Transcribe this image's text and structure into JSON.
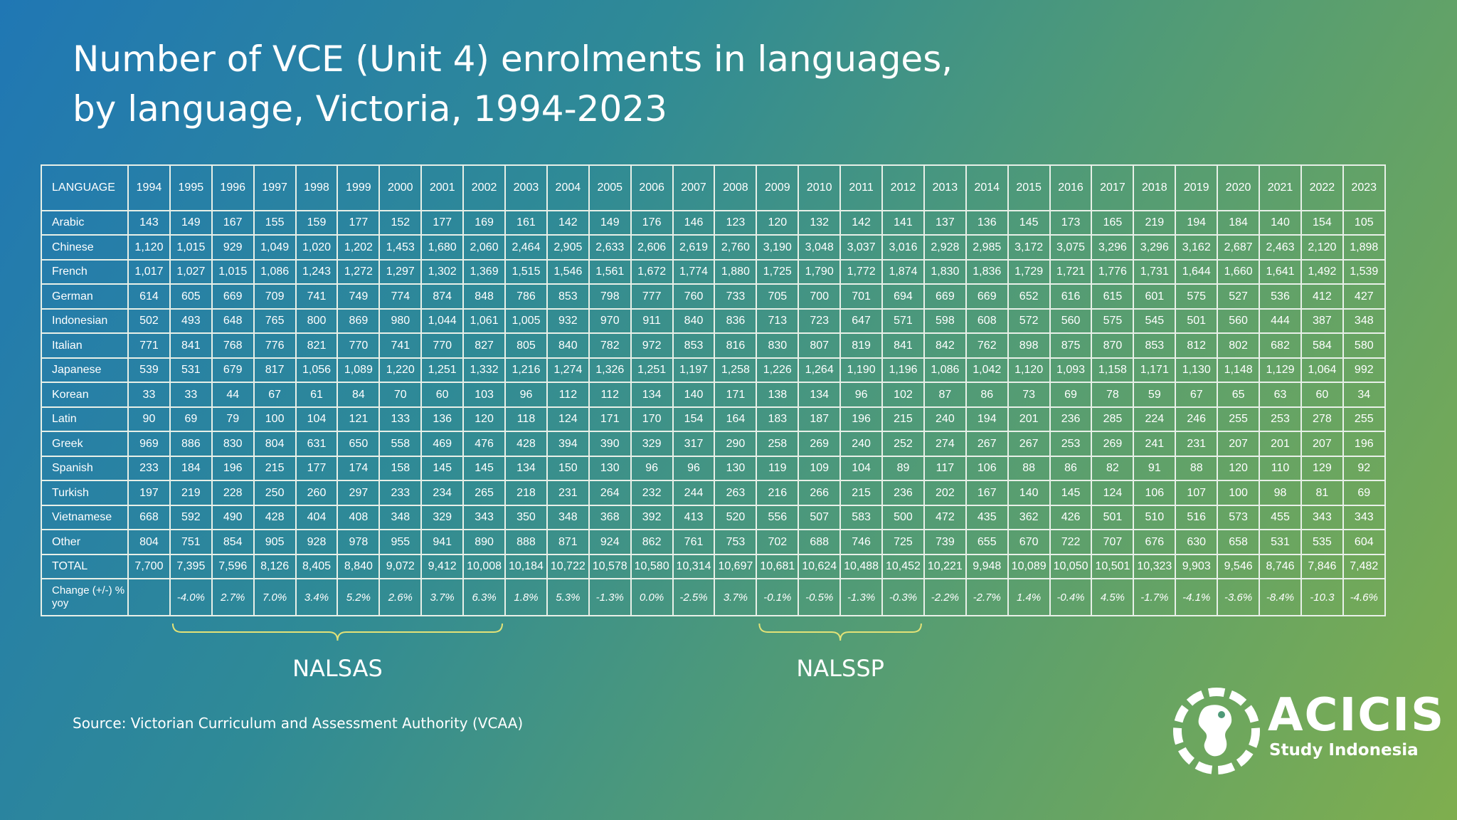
{
  "title_line1": "Number of VCE (Unit 4) enrolments in languages,",
  "title_line2": "by language, Victoria, 1994-2023",
  "source": "Source: Victorian Curriculum and Assessment Authority (VCAA)",
  "logo": {
    "name": "ACICIS",
    "sub": "Study Indonesia",
    "icon": "acicis-emblem-icon"
  },
  "annotations": [
    {
      "label": "NALSAS",
      "from_year": "1995",
      "to_year": "2002",
      "color": "#e3e277"
    },
    {
      "label": "NALSSP",
      "from_year": "2009",
      "to_year": "2012",
      "color": "#e3e277"
    }
  ],
  "chart_data": {
    "type": "table",
    "header_label": "LANGUAGE",
    "years": [
      "1994",
      "1995",
      "1996",
      "1997",
      "1998",
      "1999",
      "2000",
      "2001",
      "2002",
      "2003",
      "2004",
      "2005",
      "2006",
      "2007",
      "2008",
      "2009",
      "2010",
      "2011",
      "2012",
      "2013",
      "2014",
      "2015",
      "2016",
      "2017",
      "2018",
      "2019",
      "2020",
      "2021",
      "2022",
      "2023"
    ],
    "rows": [
      {
        "language": "Arabic",
        "values": [
          "143",
          "149",
          "167",
          "155",
          "159",
          "177",
          "152",
          "177",
          "169",
          "161",
          "142",
          "149",
          "176",
          "146",
          "123",
          "120",
          "132",
          "142",
          "141",
          "137",
          "136",
          "145",
          "173",
          "165",
          "219",
          "194",
          "184",
          "140",
          "154",
          "105"
        ]
      },
      {
        "language": "Chinese",
        "values": [
          "1,120",
          "1,015",
          "929",
          "1,049",
          "1,020",
          "1,202",
          "1,453",
          "1,680",
          "2,060",
          "2,464",
          "2,905",
          "2,633",
          "2,606",
          "2,619",
          "2,760",
          "3,190",
          "3,048",
          "3,037",
          "3,016",
          "2,928",
          "2,985",
          "3,172",
          "3,075",
          "3,296",
          "3,296",
          "3,162",
          "2,687",
          "2,463",
          "2,120",
          "1,898"
        ]
      },
      {
        "language": "French",
        "values": [
          "1,017",
          "1,027",
          "1,015",
          "1,086",
          "1,243",
          "1,272",
          "1,297",
          "1,302",
          "1,369",
          "1,515",
          "1,546",
          "1,561",
          "1,672",
          "1,774",
          "1,880",
          "1,725",
          "1,790",
          "1,772",
          "1,874",
          "1,830",
          "1,836",
          "1,729",
          "1,721",
          "1,776",
          "1,731",
          "1,644",
          "1,660",
          "1,641",
          "1,492",
          "1,539"
        ]
      },
      {
        "language": "German",
        "values": [
          "614",
          "605",
          "669",
          "709",
          "741",
          "749",
          "774",
          "874",
          "848",
          "786",
          "853",
          "798",
          "777",
          "760",
          "733",
          "705",
          "700",
          "701",
          "694",
          "669",
          "669",
          "652",
          "616",
          "615",
          "601",
          "575",
          "527",
          "536",
          "412",
          "427"
        ]
      },
      {
        "language": "Indonesian",
        "values": [
          "502",
          "493",
          "648",
          "765",
          "800",
          "869",
          "980",
          "1,044",
          "1,061",
          "1,005",
          "932",
          "970",
          "911",
          "840",
          "836",
          "713",
          "723",
          "647",
          "571",
          "598",
          "608",
          "572",
          "560",
          "575",
          "545",
          "501",
          "560",
          "444",
          "387",
          "348"
        ]
      },
      {
        "language": "Italian",
        "values": [
          "771",
          "841",
          "768",
          "776",
          "821",
          "770",
          "741",
          "770",
          "827",
          "805",
          "840",
          "782",
          "972",
          "853",
          "816",
          "830",
          "807",
          "819",
          "841",
          "842",
          "762",
          "898",
          "875",
          "870",
          "853",
          "812",
          "802",
          "682",
          "584",
          "580"
        ]
      },
      {
        "language": "Japanese",
        "values": [
          "539",
          "531",
          "679",
          "817",
          "1,056",
          "1,089",
          "1,220",
          "1,251",
          "1,332",
          "1,216",
          "1,274",
          "1,326",
          "1,251",
          "1,197",
          "1,258",
          "1,226",
          "1,264",
          "1,190",
          "1,196",
          "1,086",
          "1,042",
          "1,120",
          "1,093",
          "1,158",
          "1,171",
          "1,130",
          "1,148",
          "1,129",
          "1,064",
          "992"
        ]
      },
      {
        "language": "Korean",
        "values": [
          "33",
          "33",
          "44",
          "67",
          "61",
          "84",
          "70",
          "60",
          "103",
          "96",
          "112",
          "112",
          "134",
          "140",
          "171",
          "138",
          "134",
          "96",
          "102",
          "87",
          "86",
          "73",
          "69",
          "78",
          "59",
          "67",
          "65",
          "63",
          "60",
          "34"
        ]
      },
      {
        "language": "Latin",
        "values": [
          "90",
          "69",
          "79",
          "100",
          "104",
          "121",
          "133",
          "136",
          "120",
          "118",
          "124",
          "171",
          "170",
          "154",
          "164",
          "183",
          "187",
          "196",
          "215",
          "240",
          "194",
          "201",
          "236",
          "285",
          "224",
          "246",
          "255",
          "253",
          "278",
          "255"
        ]
      },
      {
        "language": "Greek",
        "values": [
          "969",
          "886",
          "830",
          "804",
          "631",
          "650",
          "558",
          "469",
          "476",
          "428",
          "394",
          "390",
          "329",
          "317",
          "290",
          "258",
          "269",
          "240",
          "252",
          "274",
          "267",
          "267",
          "253",
          "269",
          "241",
          "231",
          "207",
          "201",
          "207",
          "196"
        ]
      },
      {
        "language": "Spanish",
        "values": [
          "233",
          "184",
          "196",
          "215",
          "177",
          "174",
          "158",
          "145",
          "145",
          "134",
          "150",
          "130",
          "96",
          "96",
          "130",
          "119",
          "109",
          "104",
          "89",
          "117",
          "106",
          "88",
          "86",
          "82",
          "91",
          "88",
          "120",
          "110",
          "129",
          "92"
        ]
      },
      {
        "language": "Turkish",
        "values": [
          "197",
          "219",
          "228",
          "250",
          "260",
          "297",
          "233",
          "234",
          "265",
          "218",
          "231",
          "264",
          "232",
          "244",
          "263",
          "216",
          "266",
          "215",
          "236",
          "202",
          "167",
          "140",
          "145",
          "124",
          "106",
          "107",
          "100",
          "98",
          "81",
          "69"
        ]
      },
      {
        "language": "Vietnamese",
        "values": [
          "668",
          "592",
          "490",
          "428",
          "404",
          "408",
          "348",
          "329",
          "343",
          "350",
          "348",
          "368",
          "392",
          "413",
          "520",
          "556",
          "507",
          "583",
          "500",
          "472",
          "435",
          "362",
          "426",
          "501",
          "510",
          "516",
          "573",
          "455",
          "343",
          "343"
        ]
      },
      {
        "language": "Other",
        "values": [
          "804",
          "751",
          "854",
          "905",
          "928",
          "978",
          "955",
          "941",
          "890",
          "888",
          "871",
          "924",
          "862",
          "761",
          "753",
          "702",
          "688",
          "746",
          "725",
          "739",
          "655",
          "670",
          "722",
          "707",
          "676",
          "630",
          "658",
          "531",
          "535",
          "604"
        ]
      },
      {
        "language": "TOTAL",
        "values": [
          "7,700",
          "7,395",
          "7,596",
          "8,126",
          "8,405",
          "8,840",
          "9,072",
          "9,412",
          "10,008",
          "10,184",
          "10,722",
          "10,578",
          "10,580",
          "10,314",
          "10,697",
          "10,681",
          "10,624",
          "10,488",
          "10,452",
          "10,221",
          "9,948",
          "10,089",
          "10,050",
          "10,501",
          "10,323",
          "9,903",
          "9,546",
          "8,746",
          "7,846",
          "7,482"
        ]
      }
    ],
    "change_row": {
      "label": "Change (+/-) % yoy",
      "values": [
        "",
        "-4.0%",
        "2.7%",
        "7.0%",
        "3.4%",
        "5.2%",
        "2.6%",
        "3.7%",
        "6.3%",
        "1.8%",
        "5.3%",
        "-1.3%",
        "0.0%",
        "-2.5%",
        "3.7%",
        "-0.1%",
        "-0.5%",
        "-1.3%",
        "-0.3%",
        "-2.2%",
        "-2.7%",
        "1.4%",
        "-0.4%",
        "4.5%",
        "-1.7%",
        "-4.1%",
        "-3.6%",
        "-8.4%",
        "-10.3",
        "-4.6%"
      ]
    }
  }
}
